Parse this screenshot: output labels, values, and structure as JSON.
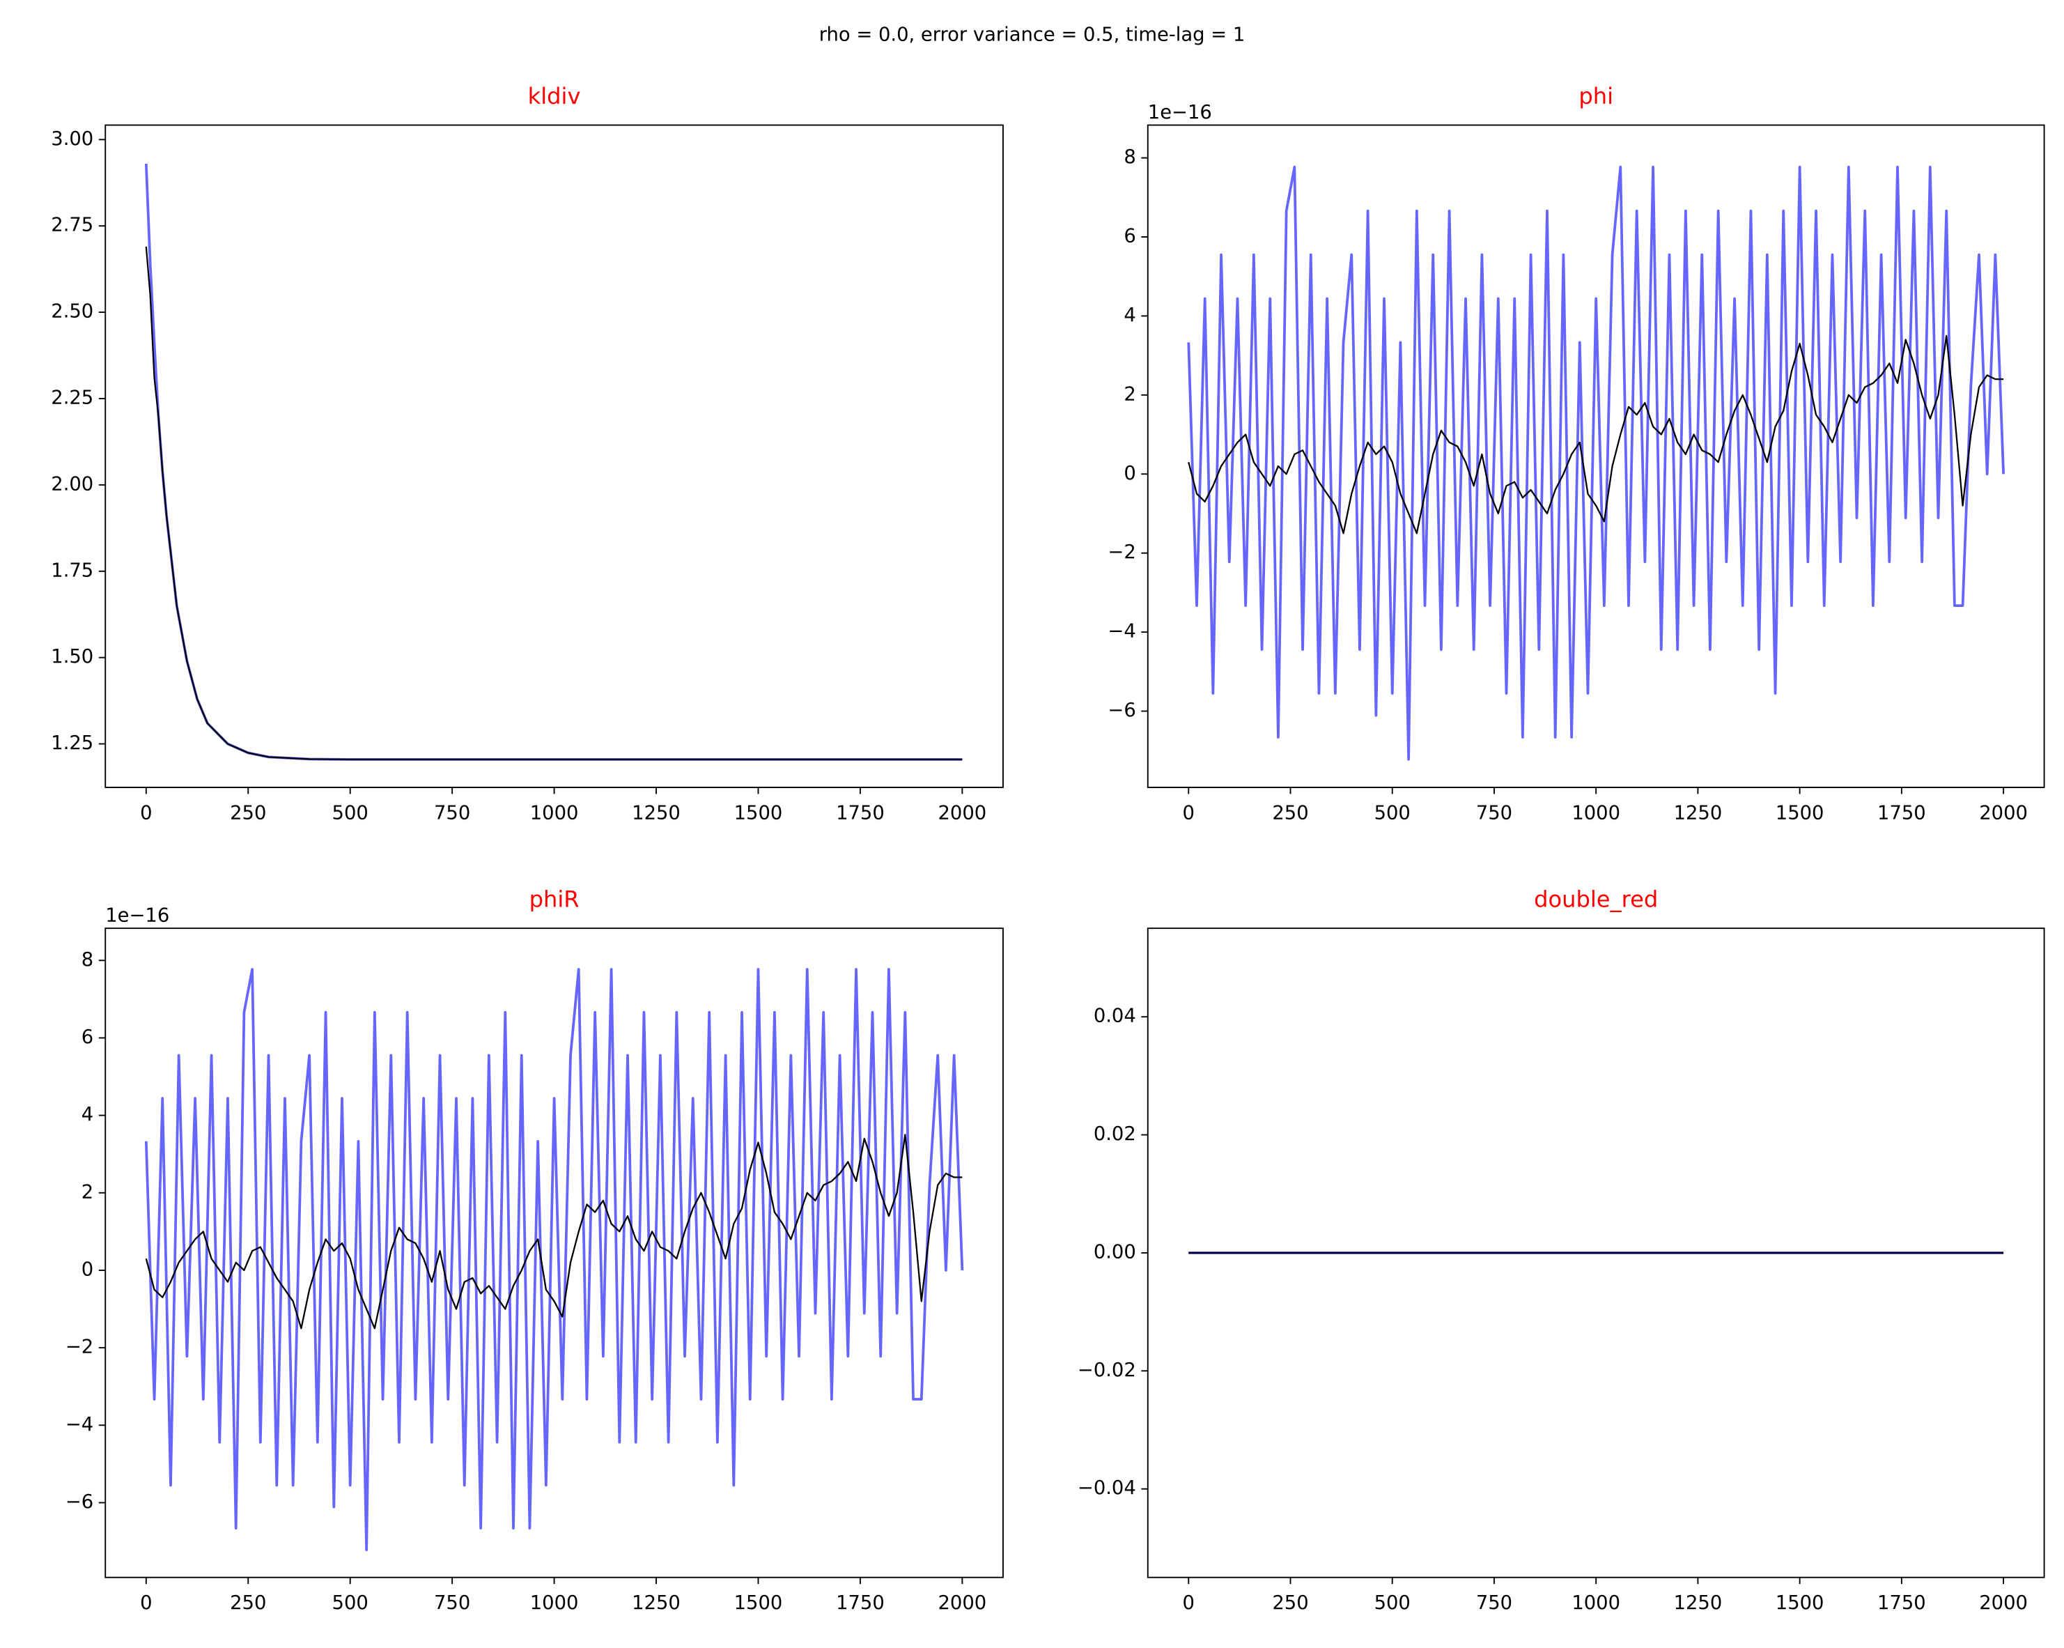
{
  "title": "rho = 0.0, error variance = 0.5, time-lag = 1",
  "chart_data": [
    {
      "type": "line",
      "title": "kldiv",
      "title_color": "#ff0000",
      "x": [
        0,
        10,
        20,
        30,
        40,
        50,
        75,
        100,
        125,
        150,
        200,
        250,
        300,
        400,
        500,
        750,
        1000,
        1250,
        1500,
        1750,
        2000
      ],
      "series": [
        {
          "color": "#6666ff",
          "values": [
            2.93,
            2.64,
            2.41,
            2.2,
            2.04,
            1.91,
            1.65,
            1.49,
            1.38,
            1.31,
            1.25,
            1.224,
            1.212,
            1.206,
            1.205,
            1.205,
            1.205,
            1.205,
            1.205,
            1.205,
            1.205
          ]
        },
        {
          "color": "#000000",
          "values": [
            2.69,
            2.55,
            2.31,
            2.2,
            2.04,
            1.91,
            1.65,
            1.49,
            1.38,
            1.31,
            1.25,
            1.224,
            1.212,
            1.206,
            1.205,
            1.205,
            1.205,
            1.205,
            1.205,
            1.205,
            1.205
          ]
        }
      ],
      "xlim": [
        -100,
        2100
      ],
      "ylim": [
        1.124,
        3.042
      ],
      "xticks": [
        0,
        250,
        500,
        750,
        1000,
        1250,
        1500,
        1750,
        2000
      ],
      "yticks": [
        1.25,
        {
          "value": 1.5,
          "label": "1.50"
        },
        1.75,
        {
          "value": 2,
          "label": "2.00"
        },
        2.25,
        {
          "value": 2.5,
          "label": "2.50"
        },
        2.75,
        {
          "value": 3,
          "label": "3.00"
        }
      ]
    },
    {
      "type": "line",
      "title": "phi",
      "title_color": "#ff0000",
      "y_offset_label": "1e−16",
      "x": [
        0,
        20,
        40,
        60,
        80,
        100,
        120,
        140,
        160,
        180,
        200,
        220,
        240,
        260,
        280,
        300,
        320,
        340,
        360,
        380,
        400,
        420,
        440,
        460,
        480,
        500,
        520,
        540,
        560,
        580,
        600,
        620,
        640,
        660,
        680,
        700,
        720,
        740,
        760,
        780,
        800,
        820,
        840,
        860,
        880,
        900,
        920,
        940,
        960,
        980,
        1000,
        1020,
        1040,
        1060,
        1080,
        1100,
        1120,
        1140,
        1160,
        1180,
        1200,
        1220,
        1240,
        1260,
        1280,
        1300,
        1320,
        1340,
        1360,
        1380,
        1400,
        1420,
        1440,
        1460,
        1480,
        1500,
        1520,
        1540,
        1560,
        1580,
        1600,
        1620,
        1640,
        1660,
        1680,
        1700,
        1720,
        1740,
        1760,
        1780,
        1800,
        1820,
        1840,
        1860,
        1880,
        1900,
        1920,
        1940,
        1960,
        1980,
        2000
      ],
      "series": [
        {
          "color": "#6666ff",
          "values": [
            3.33,
            -3.33,
            4.44,
            -5.55,
            5.55,
            -2.22,
            4.44,
            -3.33,
            5.55,
            -4.44,
            4.44,
            -6.66,
            6.66,
            7.77,
            -4.44,
            5.55,
            -5.55,
            4.44,
            -5.55,
            3.33,
            5.55,
            -4.44,
            6.66,
            -6.11,
            4.44,
            -5.55,
            3.33,
            -7.22,
            6.66,
            -3.33,
            5.55,
            -4.44,
            6.66,
            -3.33,
            4.44,
            -4.44,
            5.55,
            -3.33,
            4.44,
            -5.55,
            4.44,
            -6.66,
            5.55,
            -4.44,
            6.66,
            -6.66,
            5.55,
            -6.66,
            3.33,
            -5.55,
            4.44,
            -3.33,
            5.55,
            7.77,
            -3.33,
            6.66,
            -2.22,
            7.77,
            -4.44,
            5.55,
            -4.44,
            6.66,
            -3.33,
            5.55,
            -4.44,
            6.66,
            -2.22,
            4.44,
            -3.33,
            6.66,
            -4.44,
            5.55,
            -5.55,
            6.66,
            -3.33,
            7.77,
            -2.22,
            6.66,
            -3.33,
            5.55,
            -2.22,
            7.77,
            -1.11,
            6.66,
            -3.33,
            5.55,
            -2.22,
            7.77,
            -1.11,
            6.66,
            -2.22,
            7.77,
            -1.11,
            6.66,
            -3.33,
            -3.33,
            2.22,
            5.55,
            0,
            5.55,
            0
          ]
        },
        {
          "color": "#000000",
          "values": [
            0.3,
            -0.5,
            -0.7,
            -0.3,
            0.2,
            0.5,
            0.8,
            1.0,
            0.3,
            0,
            -0.3,
            0.2,
            0,
            0.5,
            0.6,
            0.2,
            -0.2,
            -0.5,
            -0.8,
            -1.5,
            -0.5,
            0.2,
            0.8,
            0.5,
            0.7,
            0.3,
            -0.5,
            -1.0,
            -1.5,
            -0.5,
            0.5,
            1.1,
            0.8,
            0.7,
            0.3,
            -0.3,
            0.5,
            -0.5,
            -1.0,
            -0.3,
            -0.2,
            -0.6,
            -0.4,
            -0.7,
            -1.0,
            -0.4,
            0,
            0.5,
            0.8,
            -0.5,
            -0.8,
            -1.2,
            0.2,
            1.0,
            1.7,
            1.5,
            1.8,
            1.2,
            1.0,
            1.4,
            0.8,
            0.5,
            1.0,
            0.6,
            0.5,
            0.3,
            1.0,
            1.6,
            2.0,
            1.5,
            0.9,
            0.3,
            1.2,
            1.6,
            2.6,
            3.3,
            2.5,
            1.5,
            1.2,
            0.8,
            1.4,
            2.0,
            1.8,
            2.2,
            2.3,
            2.5,
            2.8,
            2.3,
            3.4,
            2.8,
            2.0,
            1.4,
            2.0,
            3.5,
            1.5,
            -0.8,
            1.0,
            2.2,
            2.5,
            2.4,
            2.4
          ]
        }
      ],
      "xlim": [
        -100,
        2100
      ],
      "ylim": [
        -7.93,
        8.83
      ],
      "xticks": [
        0,
        250,
        500,
        750,
        1000,
        1250,
        1500,
        1750,
        2000
      ],
      "yticks": [
        {
          "value": -6,
          "label": "−6"
        },
        {
          "value": -4,
          "label": "−4"
        },
        {
          "value": -2,
          "label": "−2"
        },
        0,
        2,
        4,
        6,
        8
      ]
    },
    {
      "type": "line",
      "title": "phiR",
      "title_color": "#ff0000",
      "y_offset_label": "1e−16",
      "x": [
        0,
        20,
        40,
        60,
        80,
        100,
        120,
        140,
        160,
        180,
        200,
        220,
        240,
        260,
        280,
        300,
        320,
        340,
        360,
        380,
        400,
        420,
        440,
        460,
        480,
        500,
        520,
        540,
        560,
        580,
        600,
        620,
        640,
        660,
        680,
        700,
        720,
        740,
        760,
        780,
        800,
        820,
        840,
        860,
        880,
        900,
        920,
        940,
        960,
        980,
        1000,
        1020,
        1040,
        1060,
        1080,
        1100,
        1120,
        1140,
        1160,
        1180,
        1200,
        1220,
        1240,
        1260,
        1280,
        1300,
        1320,
        1340,
        1360,
        1380,
        1400,
        1420,
        1440,
        1460,
        1480,
        1500,
        1520,
        1540,
        1560,
        1580,
        1600,
        1620,
        1640,
        1660,
        1680,
        1700,
        1720,
        1740,
        1760,
        1780,
        1800,
        1820,
        1840,
        1860,
        1880,
        1900,
        1920,
        1940,
        1960,
        1980,
        2000
      ],
      "series": [
        {
          "color": "#6666ff",
          "values": [
            3.33,
            -3.33,
            4.44,
            -5.55,
            5.55,
            -2.22,
            4.44,
            -3.33,
            5.55,
            -4.44,
            4.44,
            -6.66,
            6.66,
            7.77,
            -4.44,
            5.55,
            -5.55,
            4.44,
            -5.55,
            3.33,
            5.55,
            -4.44,
            6.66,
            -6.11,
            4.44,
            -5.55,
            3.33,
            -7.22,
            6.66,
            -3.33,
            5.55,
            -4.44,
            6.66,
            -3.33,
            4.44,
            -4.44,
            5.55,
            -3.33,
            4.44,
            -5.55,
            4.44,
            -6.66,
            5.55,
            -4.44,
            6.66,
            -6.66,
            5.55,
            -6.66,
            3.33,
            -5.55,
            4.44,
            -3.33,
            5.55,
            7.77,
            -3.33,
            6.66,
            -2.22,
            7.77,
            -4.44,
            5.55,
            -4.44,
            6.66,
            -3.33,
            5.55,
            -4.44,
            6.66,
            -2.22,
            4.44,
            -3.33,
            6.66,
            -4.44,
            5.55,
            -5.55,
            6.66,
            -3.33,
            7.77,
            -2.22,
            6.66,
            -3.33,
            5.55,
            -2.22,
            7.77,
            -1.11,
            6.66,
            -3.33,
            5.55,
            -2.22,
            7.77,
            -1.11,
            6.66,
            -2.22,
            7.77,
            -1.11,
            6.66,
            -3.33,
            -3.33,
            2.22,
            5.55,
            0,
            5.55,
            0
          ]
        },
        {
          "color": "#000000",
          "values": [
            0.3,
            -0.5,
            -0.7,
            -0.3,
            0.2,
            0.5,
            0.8,
            1.0,
            0.3,
            0,
            -0.3,
            0.2,
            0,
            0.5,
            0.6,
            0.2,
            -0.2,
            -0.5,
            -0.8,
            -1.5,
            -0.5,
            0.2,
            0.8,
            0.5,
            0.7,
            0.3,
            -0.5,
            -1.0,
            -1.5,
            -0.5,
            0.5,
            1.1,
            0.8,
            0.7,
            0.3,
            -0.3,
            0.5,
            -0.5,
            -1.0,
            -0.3,
            -0.2,
            -0.6,
            -0.4,
            -0.7,
            -1.0,
            -0.4,
            0,
            0.5,
            0.8,
            -0.5,
            -0.8,
            -1.2,
            0.2,
            1.0,
            1.7,
            1.5,
            1.8,
            1.2,
            1.0,
            1.4,
            0.8,
            0.5,
            1.0,
            0.6,
            0.5,
            0.3,
            1.0,
            1.6,
            2.0,
            1.5,
            0.9,
            0.3,
            1.2,
            1.6,
            2.6,
            3.3,
            2.5,
            1.5,
            1.2,
            0.8,
            1.4,
            2.0,
            1.8,
            2.2,
            2.3,
            2.5,
            2.8,
            2.3,
            3.4,
            2.8,
            2.0,
            1.4,
            2.0,
            3.5,
            1.5,
            -0.8,
            1.0,
            2.2,
            2.5,
            2.4,
            2.4
          ]
        }
      ],
      "xlim": [
        -100,
        2100
      ],
      "ylim": [
        -7.93,
        8.83
      ],
      "xticks": [
        0,
        250,
        500,
        750,
        1000,
        1250,
        1500,
        1750,
        2000
      ],
      "yticks": [
        {
          "value": -6,
          "label": "−6"
        },
        {
          "value": -4,
          "label": "−4"
        },
        {
          "value": -2,
          "label": "−2"
        },
        0,
        2,
        4,
        6,
        8
      ]
    },
    {
      "type": "line",
      "title": "double_red",
      "title_color": "#ff0000",
      "x": [
        0,
        2000
      ],
      "series": [
        {
          "color": "#6666ff",
          "values": [
            0,
            0
          ]
        },
        {
          "color": "#000000",
          "values": [
            0,
            0
          ]
        }
      ],
      "xlim": [
        -100,
        2100
      ],
      "ylim": [
        -0.055,
        0.055
      ],
      "xticks": [
        0,
        250,
        500,
        750,
        1000,
        1250,
        1500,
        1750,
        2000
      ],
      "yticks": [
        {
          "value": -0.04,
          "label": "−0.04"
        },
        {
          "value": -0.02,
          "label": "−0.02"
        },
        {
          "value": 0,
          "label": "0.00"
        },
        0.02,
        0.04
      ]
    }
  ]
}
